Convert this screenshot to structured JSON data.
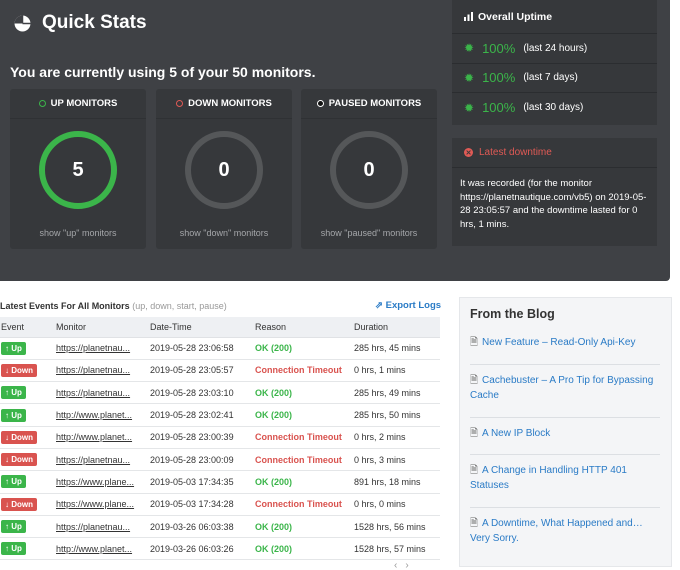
{
  "quick_stats": {
    "title": "Quick Stats",
    "icon": "pie-chart-icon",
    "usage_text": "You are currently using 5 of your 50 monitors."
  },
  "monitors": [
    {
      "label": "UP MONITORS",
      "count": "5",
      "link": "show \"up\" monitors",
      "dot_color": "#3bb54a"
    },
    {
      "label": "DOWN MONITORS",
      "count": "0",
      "link": "show \"down\" monitors",
      "dot_color": "#e05a55"
    },
    {
      "label": "PAUSED MONITORS",
      "count": "0",
      "link": "show \"paused\" monitors",
      "dot_color": "#111111"
    }
  ],
  "overall_uptime": {
    "title": "Overall Uptime",
    "rows": [
      {
        "pct": "100%",
        "period": "(last 24 hours)"
      },
      {
        "pct": "100%",
        "period": "(last 7 days)"
      },
      {
        "pct": "100%",
        "period": "(last 30 days)"
      }
    ]
  },
  "latest_downtime": {
    "title": "Latest downtime",
    "text": "It was recorded (for the monitor https://planetnautique.com/vb5) on 2019-05-28 23:05:57 and the downtime lasted for 0 hrs, 1 mins."
  },
  "events": {
    "title": "Latest Events For All Monitors",
    "subtitle": "(up, down, start, pause)",
    "export_label": "Export Logs",
    "columns": [
      "Event",
      "Monitor",
      "Date-Time",
      "Reason",
      "Duration"
    ],
    "rows": [
      {
        "event": "Up",
        "monitor": "https://planetnau...",
        "datetime": "2019-05-28 23:06:58",
        "reason": "OK (200)",
        "duration": "285 hrs, 45 mins"
      },
      {
        "event": "Down",
        "monitor": "https://planetnau...",
        "datetime": "2019-05-28 23:05:57",
        "reason": "Connection Timeout",
        "duration": "0 hrs, 1 mins"
      },
      {
        "event": "Up",
        "monitor": "https://planetnau...",
        "datetime": "2019-05-28 23:03:10",
        "reason": "OK (200)",
        "duration": "285 hrs, 49 mins"
      },
      {
        "event": "Up",
        "monitor": "http://www.planet...",
        "datetime": "2019-05-28 23:02:41",
        "reason": "OK (200)",
        "duration": "285 hrs, 50 mins"
      },
      {
        "event": "Down",
        "monitor": "http://www.planet...",
        "datetime": "2019-05-28 23:00:39",
        "reason": "Connection Timeout",
        "duration": "0 hrs, 2 mins"
      },
      {
        "event": "Down",
        "monitor": "https://planetnau...",
        "datetime": "2019-05-28 23:00:09",
        "reason": "Connection Timeout",
        "duration": "0 hrs, 3 mins"
      },
      {
        "event": "Up",
        "monitor": "https://www.plane...",
        "datetime": "2019-05-03 17:34:35",
        "reason": "OK (200)",
        "duration": "891 hrs, 18 mins"
      },
      {
        "event": "Down",
        "monitor": "https://www.plane...",
        "datetime": "2019-05-03 17:34:28",
        "reason": "Connection Timeout",
        "duration": "0 hrs, 0 mins"
      },
      {
        "event": "Up",
        "monitor": "https://planetnau...",
        "datetime": "2019-03-26 06:03:38",
        "reason": "OK (200)",
        "duration": "1528 hrs, 56 mins"
      },
      {
        "event": "Up",
        "monitor": "http://www.planet...",
        "datetime": "2019-03-26 06:03:26",
        "reason": "OK (200)",
        "duration": "1528 hrs, 57 mins"
      }
    ],
    "pager_prev": "‹",
    "pager_next": "›"
  },
  "blog": {
    "title": "From the Blog",
    "items": [
      "New Feature – Read-Only Api-Key",
      "Cachebuster – A Pro Tip for Bypassing Cache",
      "A New IP Block",
      "A Change in Handling HTTP 401 Statuses",
      "A Downtime, What Happened and… Very Sorry."
    ]
  },
  "colors": {
    "dark_bg": "#3f4145",
    "panel_bg": "#36383b",
    "up_green": "#3bb54a",
    "down_red": "#d9534f",
    "link_blue": "#2a7bc6"
  }
}
